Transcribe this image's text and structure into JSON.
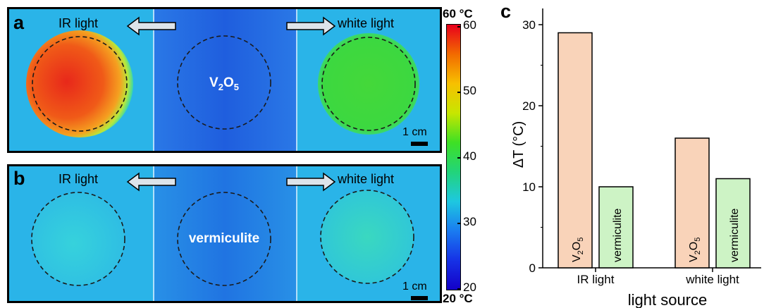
{
  "panel_a": {
    "letter": "a",
    "left_label": "IR light",
    "right_label": "white light",
    "center_label_main": "V",
    "center_label_sub1": "2",
    "center_label_mid": "O",
    "center_label_sub2": "5",
    "scale_label": "1 cm"
  },
  "panel_b": {
    "letter": "b",
    "left_label": "IR light",
    "right_label": "white light",
    "center_label": "vermiculite",
    "scale_label": "1 cm"
  },
  "colorbar": {
    "top_label": "60 °C",
    "bottom_label": "20 °C",
    "ticks": [
      "60",
      "50",
      "40",
      "30",
      "20"
    ],
    "colors": [
      "#e8001c",
      "#f26a00",
      "#f7c000",
      "#c8e600",
      "#3ee024",
      "#22d47a",
      "#1ec8e0",
      "#1a7cf0",
      "#1632e6",
      "#1400c8"
    ]
  },
  "colors": {
    "background_cyan": "#2ab4e8",
    "center_blue": "#1f62e0",
    "hot_red": "#ee3a1a",
    "warm_green": "#3ad838",
    "bar_v2o5": "#f9d3b9",
    "bar_vermiculite": "#cdf3c5"
  },
  "chart_data": {
    "type": "bar",
    "panel_letter": "c",
    "categories": [
      "IR light",
      "white light"
    ],
    "series": [
      {
        "name": "V2O5",
        "label_main": "V",
        "label_sub1": "2",
        "label_mid": "O",
        "label_sub2": "5",
        "values": [
          29,
          16
        ]
      },
      {
        "name": "vermiculite",
        "label_main": "vermiculite",
        "values": [
          10,
          11
        ]
      }
    ],
    "xlabel": "light source",
    "ylabel": "ΔT (°C)",
    "ylim": [
      0,
      32
    ],
    "yticks": [
      0,
      10,
      20,
      30
    ],
    "grid": false,
    "legend": "none"
  }
}
